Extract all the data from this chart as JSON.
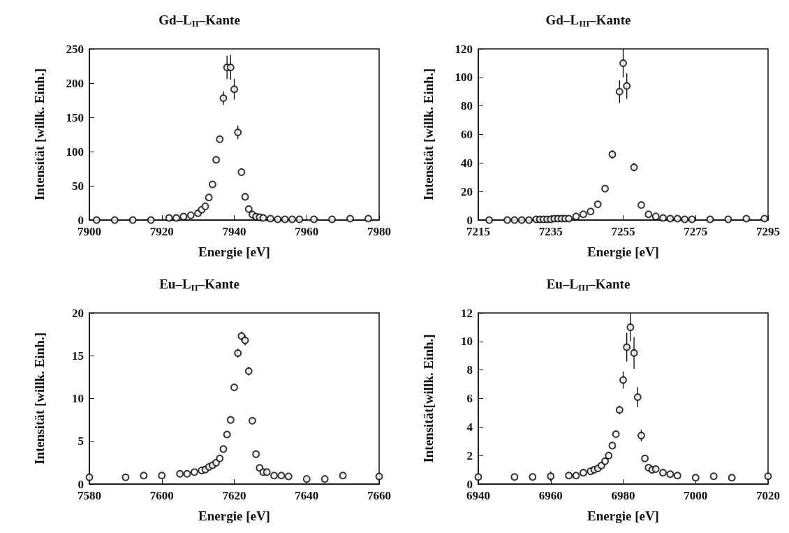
{
  "chart_data": [
    {
      "type": "scatter",
      "title": "Gd–L$_{II}$–Kante",
      "xlabel": "Energie [eV]",
      "ylabel": "Intensität [willk. Einh.]",
      "xlim": [
        7900,
        7980
      ],
      "xticks": [
        7900,
        7920,
        7940,
        7960,
        7980
      ],
      "ylim": [
        0,
        250
      ],
      "yticks": [
        0,
        50,
        100,
        150,
        200,
        250
      ],
      "marker": "circle",
      "grid": false,
      "legend": false,
      "series": [
        {
          "color": "#000000",
          "x": [
            7902,
            7907,
            7912,
            7917,
            7922,
            7924,
            7926,
            7928,
            7930,
            7931,
            7932,
            7933,
            7934,
            7935,
            7936,
            7937,
            7938,
            7939,
            7940,
            7941,
            7942,
            7943,
            7944,
            7945,
            7946,
            7947,
            7948,
            7950,
            7952,
            7954,
            7956,
            7958,
            7962,
            7967,
            7972,
            7977
          ],
          "values": [
            0,
            0,
            0,
            0,
            3,
            3,
            5,
            7,
            10,
            15,
            20,
            33,
            52,
            88,
            118,
            178,
            223,
            223,
            191,
            128,
            70,
            34,
            16,
            8,
            5,
            4,
            3,
            2,
            1,
            1,
            1,
            1,
            1,
            1,
            2,
            2
          ],
          "errors": [
            null,
            null,
            null,
            null,
            null,
            null,
            null,
            null,
            null,
            null,
            null,
            null,
            null,
            null,
            5,
            10,
            17,
            18,
            15,
            10,
            null,
            null,
            null,
            null,
            null,
            null,
            null,
            null,
            null,
            null,
            null,
            null,
            null,
            null,
            null,
            null
          ]
        }
      ]
    },
    {
      "type": "scatter",
      "title": "Gd–L$_{III}$–Kante",
      "xlabel": "Energie [eV]",
      "ylabel": "Intensität [willk. Einh.]",
      "xlim": [
        7215,
        7295
      ],
      "xticks": [
        7215,
        7235,
        7255,
        7275,
        7295
      ],
      "ylim": [
        0,
        120
      ],
      "yticks": [
        0,
        20,
        40,
        60,
        80,
        100,
        120
      ],
      "marker": "circle",
      "grid": false,
      "legend": false,
      "series": [
        {
          "color": "#000000",
          "x": [
            7218,
            7223,
            7225,
            7227,
            7229,
            7231,
            7232,
            7233,
            7234,
            7235,
            7236,
            7237,
            7238,
            7239,
            7240,
            7242,
            7244,
            7246,
            7248,
            7250,
            7252,
            7254,
            7255,
            7256,
            7258,
            7260,
            7262,
            7264,
            7266,
            7268,
            7270,
            7272,
            7274,
            7279,
            7284,
            7289,
            7294
          ],
          "values": [
            0,
            0,
            0,
            0,
            0,
            0.5,
            0.5,
            0.5,
            0.5,
            0.5,
            1,
            1,
            1,
            1,
            1,
            2.5,
            4,
            6,
            11,
            22,
            46,
            90,
            110,
            94,
            37,
            10.5,
            4,
            2.5,
            1.5,
            1,
            1,
            0.5,
            0.5,
            0.5,
            0.5,
            1,
            1
          ],
          "errors": [
            null,
            null,
            null,
            null,
            null,
            null,
            null,
            null,
            null,
            null,
            null,
            null,
            null,
            null,
            null,
            null,
            null,
            null,
            null,
            null,
            3,
            8,
            10,
            9,
            3,
            null,
            null,
            null,
            null,
            null,
            null,
            null,
            null,
            null,
            null,
            null,
            null
          ]
        }
      ]
    },
    {
      "type": "scatter",
      "title": "Eu–L$_{II}$–Kante",
      "xlabel": "Energie [eV]",
      "ylabel": "Intensität [willk. Einh.]",
      "xlim": [
        7580,
        7660
      ],
      "xticks": [
        7580,
        7600,
        7620,
        7640,
        7660
      ],
      "ylim": [
        0,
        20
      ],
      "yticks": [
        0,
        5,
        10,
        15,
        20
      ],
      "marker": "circle",
      "grid": false,
      "legend": false,
      "series": [
        {
          "color": "#000000",
          "x": [
            7580,
            7590,
            7595,
            7600,
            7605,
            7607,
            7609,
            7611,
            7612,
            7613,
            7614,
            7615,
            7616,
            7617,
            7618,
            7619,
            7620,
            7621,
            7622,
            7623,
            7624,
            7625,
            7626,
            7627,
            7628,
            7629,
            7631,
            7633,
            7635,
            7640,
            7645,
            7650,
            7660
          ],
          "values": [
            0.8,
            0.8,
            1,
            1,
            1.2,
            1.2,
            1.4,
            1.6,
            1.7,
            2,
            2.2,
            2.5,
            3,
            4.1,
            5.8,
            7.5,
            11.3,
            15.3,
            17.3,
            16.8,
            13.2,
            7.4,
            3.5,
            1.9,
            1.4,
            1.4,
            1,
            1,
            0.9,
            0.6,
            0.6,
            1,
            0.9
          ],
          "errors": [
            null,
            null,
            null,
            null,
            null,
            null,
            null,
            null,
            null,
            null,
            null,
            null,
            null,
            null,
            null,
            null,
            null,
            0.5,
            0.5,
            0.6,
            0.5,
            null,
            null,
            null,
            null,
            null,
            null,
            null,
            null,
            null,
            null,
            null,
            null
          ]
        }
      ]
    },
    {
      "type": "scatter",
      "title": "Eu–L$_{III}$–Kante",
      "xlabel": "Energie [eV]",
      "ylabel": "Intensität[willk. Einh.]",
      "xlim": [
        6940,
        7020
      ],
      "xticks": [
        6940,
        6960,
        6980,
        7000,
        7020
      ],
      "ylim": [
        0,
        12
      ],
      "yticks": [
        0,
        2,
        4,
        6,
        8,
        10,
        12
      ],
      "marker": "circle",
      "grid": false,
      "legend": false,
      "series": [
        {
          "color": "#000000",
          "x": [
            6940,
            6950,
            6955,
            6960,
            6965,
            6967,
            6969,
            6971,
            6972,
            6973,
            6974,
            6975,
            6976,
            6977,
            6978,
            6979,
            6980,
            6981,
            6982,
            6983,
            6984,
            6985,
            6986,
            6987,
            6988,
            6989,
            6991,
            6993,
            6995,
            7000,
            7005,
            7010,
            7020
          ],
          "values": [
            0.5,
            0.5,
            0.5,
            0.55,
            0.6,
            0.6,
            0.8,
            0.9,
            1,
            1.1,
            1.3,
            1.6,
            2,
            2.7,
            3.5,
            5.2,
            7.3,
            9.6,
            11,
            9.2,
            6.1,
            3.4,
            1.8,
            1.15,
            1,
            1.05,
            0.8,
            0.7,
            0.6,
            0.45,
            0.55,
            0.45,
            0.55
          ],
          "errors": [
            null,
            null,
            null,
            0.35,
            null,
            null,
            null,
            null,
            null,
            null,
            null,
            null,
            null,
            null,
            null,
            0.3,
            0.6,
            1,
            1,
            1.1,
            0.7,
            0.4,
            null,
            null,
            null,
            null,
            null,
            null,
            null,
            null,
            null,
            null,
            null
          ]
        }
      ]
    }
  ]
}
